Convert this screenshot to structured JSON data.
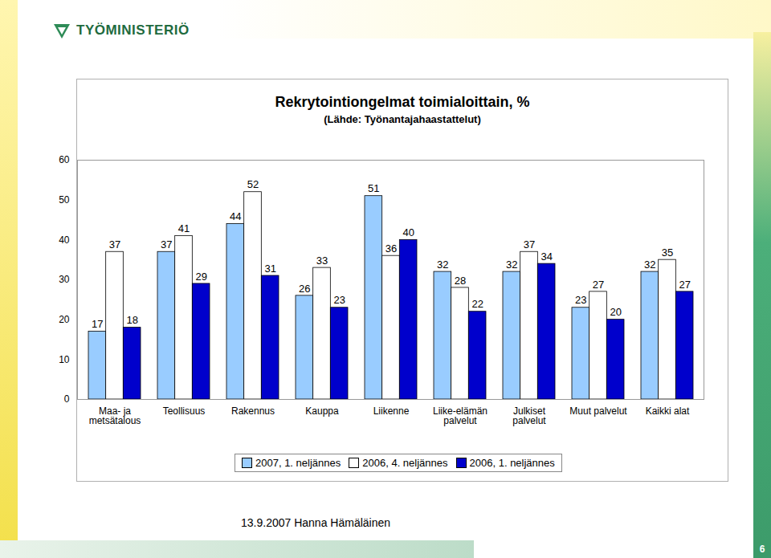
{
  "header": {
    "logo": "TYÖMINISTERIÖ"
  },
  "chart_data": {
    "type": "bar",
    "title": "Rekrytointiongelmat toimialoittain, %",
    "subtitle": "(Lähde: Työnantajahaastattelut)",
    "categories": [
      "Maa- ja metsätalous",
      "Teollisuus",
      "Rakennus",
      "Kauppa",
      "Liikenne",
      "Liike-elämän palvelut",
      "Julkiset palvelut",
      "Muut palvelut",
      "Kaikki alat"
    ],
    "series": [
      {
        "name": "2007, 1. neljännes",
        "color": "#99ccff",
        "values": [
          17,
          37,
          44,
          26,
          51,
          32,
          32,
          23,
          32
        ]
      },
      {
        "name": "2006, 4. neljännes",
        "color": "#ffffff",
        "values": [
          37,
          41,
          52,
          33,
          36,
          28,
          37,
          27,
          35
        ]
      },
      {
        "name": "2006, 1. neljännes",
        "color": "#0000cc",
        "values": [
          18,
          29,
          31,
          23,
          40,
          22,
          34,
          20,
          27
        ]
      }
    ],
    "ylim": [
      0,
      60
    ],
    "yticks": [
      0,
      10,
      20,
      30,
      40,
      50,
      60
    ],
    "grid": false,
    "legend": "bottom",
    "data_labels": true
  },
  "footer": {
    "text": "13.9.2007 Hanna Hämäläinen",
    "page": "6"
  }
}
